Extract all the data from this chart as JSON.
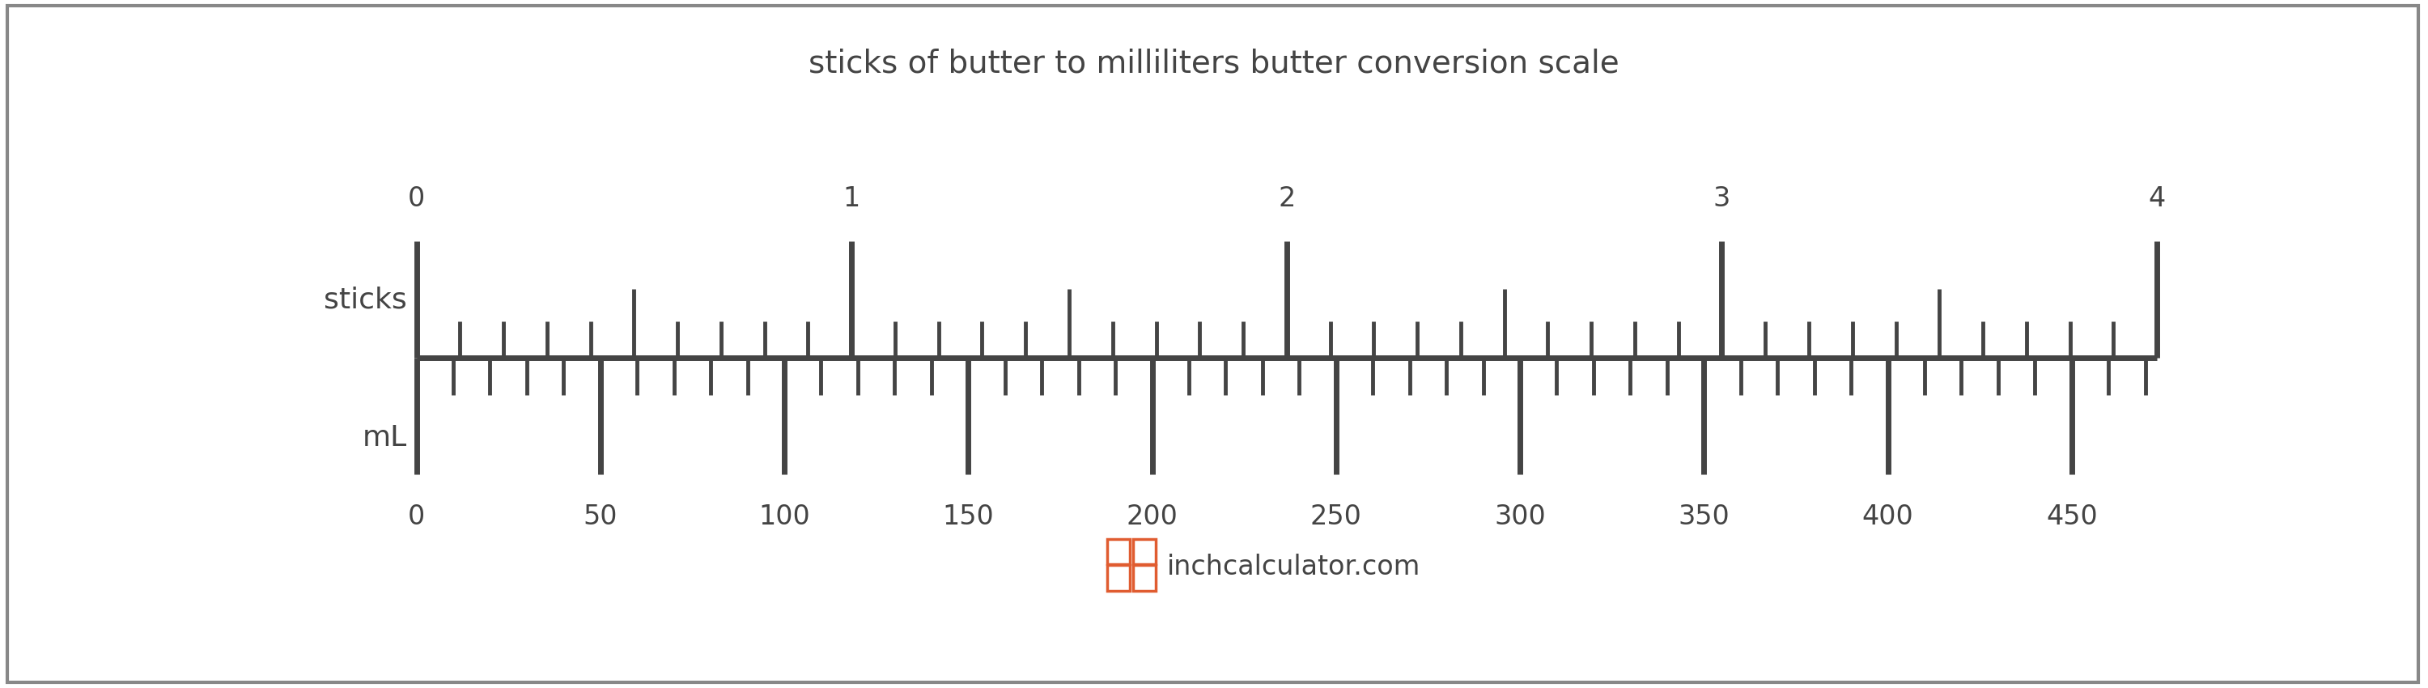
{
  "title": "sticks of butter to milliliters butter conversion scale",
  "title_fontsize": 28,
  "title_color": "#444444",
  "background_color": "#ffffff",
  "border_color": "#888888",
  "scale_line_color": "#444444",
  "scale_line_lw": 5,
  "sticks_label": "sticks",
  "ml_label": "mL",
  "label_fontsize": 26,
  "label_color": "#444444",
  "tick_label_fontsize": 24,
  "tick_label_color": "#444444",
  "ml_min": 0,
  "ml_max": 473.176,
  "sticks_min": 0,
  "sticks_max": 4,
  "ml_major_ticks": [
    0,
    50,
    100,
    150,
    200,
    250,
    300,
    350,
    400,
    450
  ],
  "sticks_major_ticks": [
    0,
    1,
    2,
    3,
    4
  ],
  "ml_per_stick": 118.294,
  "watermark_text": "inchcalculator.com",
  "watermark_color": "#444444",
  "watermark_fontsize": 24,
  "icon_color": "#e05c30"
}
